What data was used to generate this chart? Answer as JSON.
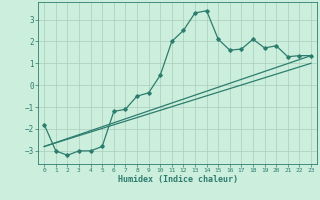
{
  "xlabel": "Humidex (Indice chaleur)",
  "ylabel": "",
  "background_color": "#cceedd",
  "line_color": "#2d7d6e",
  "grid_color": "#aaccbb",
  "xlim": [
    -0.5,
    23.5
  ],
  "ylim": [
    -3.6,
    3.8
  ],
  "yticks": [
    -3,
    -2,
    -1,
    0,
    1,
    2,
    3
  ],
  "xticks": [
    0,
    1,
    2,
    3,
    4,
    5,
    6,
    7,
    8,
    9,
    10,
    11,
    12,
    13,
    14,
    15,
    16,
    17,
    18,
    19,
    20,
    21,
    22,
    23
  ],
  "series": [
    {
      "x": [
        0,
        1,
        2,
        3,
        4,
        5,
        6,
        7,
        8,
        9,
        10,
        11,
        12,
        13,
        14,
        15,
        16,
        17,
        18,
        19,
        20,
        21,
        22,
        23
      ],
      "y": [
        -1.8,
        -3.0,
        -3.2,
        -3.0,
        -3.0,
        -2.8,
        -1.2,
        -1.1,
        -0.5,
        -0.35,
        0.45,
        2.0,
        2.5,
        3.3,
        3.4,
        2.1,
        1.6,
        1.65,
        2.1,
        1.7,
        1.8,
        1.3,
        1.35,
        1.35
      ],
      "marker": "D",
      "markersize": 1.8,
      "linewidth": 0.9
    },
    {
      "x": [
        0,
        23
      ],
      "y": [
        -2.8,
        1.35
      ],
      "marker": null,
      "markersize": 0,
      "linewidth": 0.9
    },
    {
      "x": [
        0,
        23
      ],
      "y": [
        -2.8,
        1.0
      ],
      "marker": null,
      "markersize": 0,
      "linewidth": 0.9
    }
  ]
}
